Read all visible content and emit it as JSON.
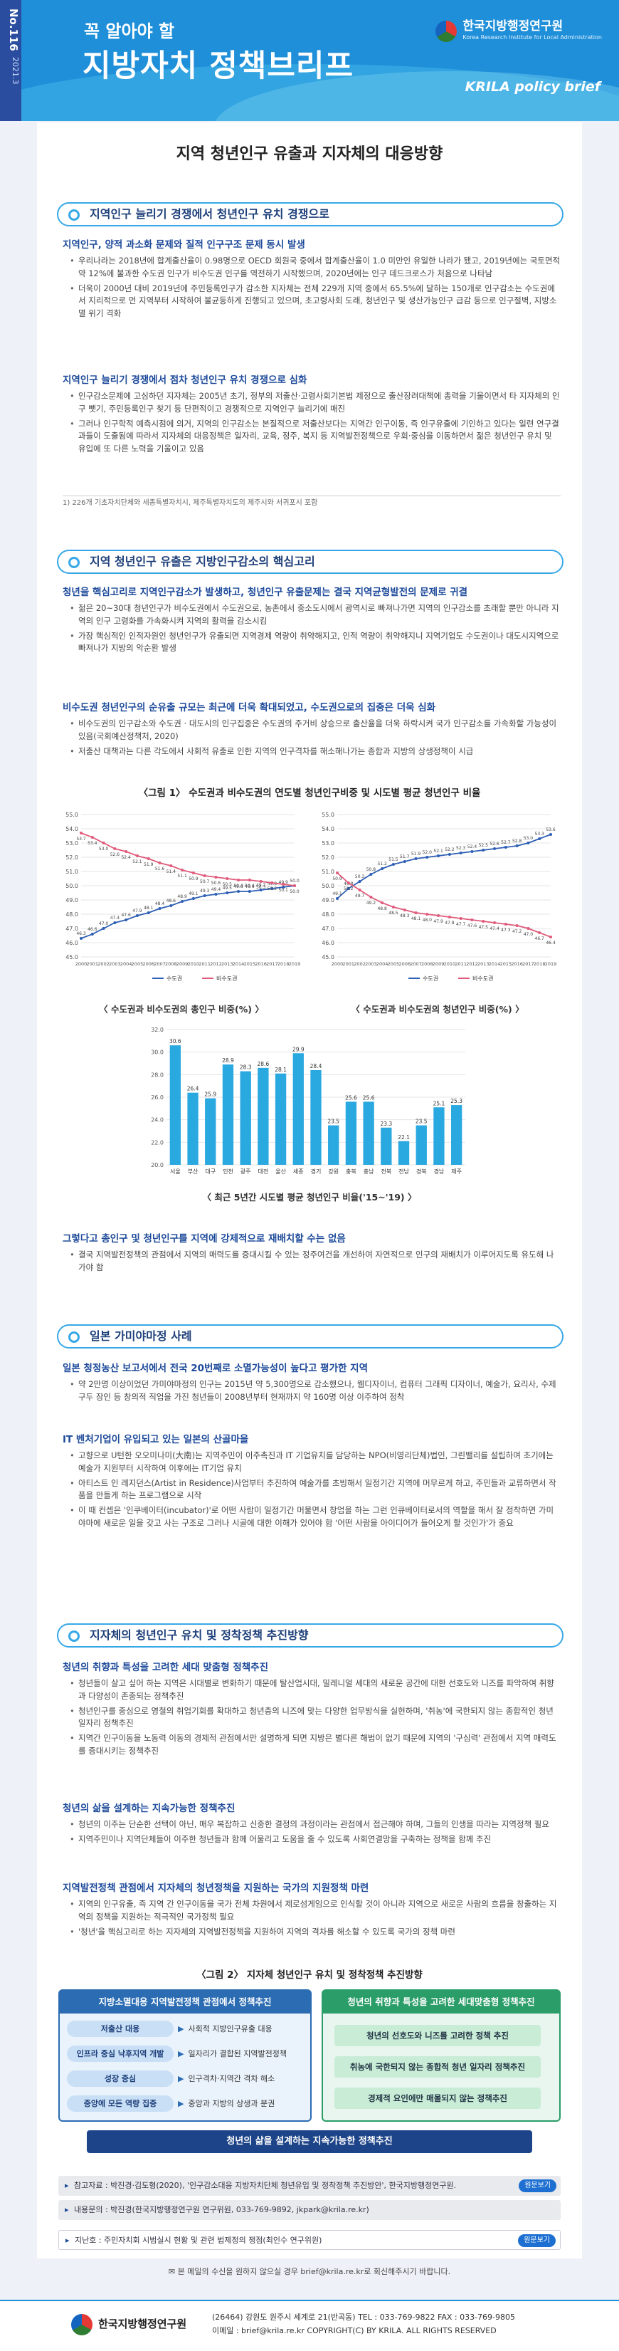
{
  "header": {
    "issue_no": "No.116",
    "issue_date": "2021.3",
    "subtitle": "꼭 알아야 할",
    "title": "지방자치 정책브리프",
    "org": "한국지방행정연구원",
    "org_en": "Korea Research Institute for Local Administration",
    "brief_tag": "KRILA policy brief"
  },
  "main_title": "지역 청년인구 유출과 지자체의 대응방향",
  "s1": {
    "head": "지역인구 늘리기 경쟁에서 청년인구 유치 경쟁으로",
    "sub1": "지역인구, 양적 과소화 문제와 질적 인구구조 문제 동시 발생",
    "b1": [
      "우리나라는 2018년에 합계출산율이 0.98명으로 OECD 회원국 중에서 합계출산율이 1.0 미만인 유일한 나라가 됐고, 2019년에는 국토면적 약 12%에 불과한 수도권 인구가 비수도권 인구를 역전하기 시작했으며, 2020년에는 인구 데드크로스가 처음으로 나타남",
      "더욱이 2000년 대비 2019년에 주민등록인구가 감소한 지자체는 전체 229개 지역 중에서 65.5%에 달하는 150개로 인구감소는 수도권에서 지리적으로 먼 지역부터 시작하여 불균등하게 진행되고 있으며, 초고령사회 도래, 청년인구 및 생산가능인구 급감 등으로 인구절벽, 지방소멸 위기 격화"
    ],
    "sub2": "지역인구 늘리기 경쟁에서 점차 청년인구 유치 경쟁으로 심화",
    "b2": [
      "인구감소문제에 고심하던 지자체는 2005년 초기, 정부의 저출산·고령사회기본법 제정으로 출산장려대책에 총력을 기울이면서 타 지자체의 인구 뺏기, 주민등록인구 찾기 등 단편적이고 경쟁적으로 지역인구 늘리기에 매진",
      "그러나 인구학적 예측시점에 의거, 지역의 인구감소는 본질적으로 저출산보다는 지역간 인구이동, 즉 인구유출에 기인하고 있다는 일련 연구결과들이 도출됨에 따라서 지자체의 대응정책은 일자리, 교육, 정주, 복지 등 지역발전정책으로 우회·중심을 이동하면서 젊은 청년인구 유치 및 유입에 또 다른 노력을 기울이고 있음"
    ],
    "footnote": "1) 226개 기초자치단체와 세종특별자치시, 제주특별자치도의 제주시와 서귀포시 포함"
  },
  "s2": {
    "head": "지역 청년인구 유출은 지방인구감소의 핵심고리",
    "sub1": "청년을 핵심고리로 지역인구감소가 발생하고, 청년인구 유출문제는 결국 지역균형발전의 문제로 귀결",
    "b1": [
      "젊은 20~30대 청년인구가 비수도권에서 수도권으로, 농촌에서 중소도시에서 광역시로 빠져나가면 지역의 인구감소를 초래할 뿐만 아니라 지역의 인구 고령화를 가속화시켜 지역의 활력을 감소시킴",
      "가장 핵심적인 인적자원인 청년인구가 유출되면 지역경제 역량이 취약해지고, 인적 역량이 취약해지니 지역기업도 수도권이나 대도시지역으로 빠져나가 지방의 악순환 발생"
    ],
    "sub2": "비수도권 청년인구의 순유출 규모는 최근에 더욱 확대되었고, 수도권으로의 집중은 더욱 심화",
    "b2": [
      "비수도권의 인구감소와 수도권 · 대도시의 인구집중은 수도권의 주거비 상승으로 출산율을 더욱 하락시켜 국가 인구감소를 가속화할 가능성이 있음(국회예산정책처, 2020)",
      "저출산 대책과는 다른 각도에서 사회적 유출로 인한 지역의 인구격차를 해소해나가는 종합과 지방의 상생정책이 시급"
    ],
    "fig1_title": "〈그림 1〉 수도권과 비수도권의 연도별 청년인구비중 및 시도별 평균 청년인구 비율",
    "cap_left": "〈 수도권과 비수도권의 총인구 비중(%) 〉",
    "cap_right": "〈 수도권과 비수도권의 청년인구 비중(%) 〉",
    "cap_bar": "〈 최근 5년간 시도별 평균 청년인구 비율('15~'19) 〉",
    "sub3": "그렇다고 총인구 및 청년인구를 지역에 강제적으로 재배치할 수는 없음",
    "b3": [
      "결국 지역발전정책의 관점에서 지역의 매력도를 증대시킬 수 있는 정주여건을 개선하여 자연적으로 인구의 재배치가 이루어지도록 유도해 나가야 함"
    ]
  },
  "s3": {
    "head": "일본 가미야마정 사례",
    "sub1": "일본 청정농산 보고서에서 전국 20번째로 소멸가능성이 높다고 평가한 지역",
    "b1": [
      "약 2만명 이상이었던 가미야마정의 인구는 2015년 약 5,300명으로 감소했으나, 웹디자이너, 컴퓨터 그래픽 디자이너, 예술가, 요리사, 수제구두 장인 등 창의적 직업을 가진 청년들이 2008년부터 현재까지 약 160명 이상 이주하여 정착"
    ],
    "sub2": "IT 벤처기업이 유입되고 있는 일본의 산골마을",
    "b2": [
      "고향으로 U턴한 오오미나미(大南)는 지역주민이 이주촉진과 IT 기업유치를 담당하는 NPO(비영리단체)법인, 그린밸리를 설립하여 초기에는 예술가 지원부터 시작하여 이후에는 IT기업 유치",
      "아티스트 인 레지던스(Artist in Residence)사업부터 추진하여 예술가를 초빙해서 일정기간 지역에 머무르게 하고, 주민들과 교류하면서 작품을 만들게 하는 프로그램으로 시작",
      "이 때 컨셉은 '인쿠베이터(incubator)'로 어떤 사람이 일정기간 머물면서 창업을 하는 그런 인큐베이터로서의 역할을 해서 잘 정착하면 가미야마에 새로운 일을 갖고 사는 구조로 그러나 시골에 대한 이해가 있어야 함"
    ],
    "b2extra": "'어떤 사람을 아이디어가 들어오게 할 것인가'가 중요"
  },
  "s4": {
    "head": "지자체의 청년인구 유치 및 정착정책 추진방향",
    "sub1": "청년의 취향과 특성을 고려한 세대 맞춤형 정책추진",
    "b1": [
      "청년들이 살고 싶어 하는 지역은 시대별로 변화하기 때문에 탈산업시대, 밀레니얼 세대의 새로운 공간에 대한 선호도와 니즈를 파악하여 취향과 다양성이 존중되는 정책추진",
      "청년인구를 중심으로 영철의 취업기회를 확대하고 청년층의 니즈에 맞는 다양한 업무방식을 실현하며, '취농'에 국한되지 않는 종합적인 청년일자리 정책추진",
      "지역간 인구이동을 노동력 이동의 경제적 관점에서만 설명하게 되면 지방은 별다른 해법이 없기 때문에 지역의 '구심력' 관점에서 지역 매력도를 증대시키는 정책추진"
    ],
    "sub2": "청년의 삶을 설계하는 지속가능한 정책추진",
    "b2": [
      "청년의 이주는 단순한 선택이 아닌, 매우 복잡하고 신중한 결정의 과정이라는 관점에서 접근해야 하며, 그들의 인생을 따라는 지역정책 필요",
      "지역주민이나 지역단체들이 이주한 청년들과 함께 어울리고 도움을 줄 수 있도록 사회연결망을 구축하는 정책을 함께 추진"
    ],
    "sub3": "지역발전정책 관점에서 지자체의 청년정책을 지원하는 국가의 지원정책 마련",
    "b3": [
      "지역의 인구유출, 즉 지역 간 인구이동을 국가 전체 차원에서 제로섬게임으로 인식할 것이 아니라 지역으로 새로운 사람의 흐름을 창출하는 지역의 정책을 지원하는 적극적인 국가정책 필요",
      "'청년'을 핵심고리로 하는 지자체의 지역발전정책을 지원하여 지역의 격차를 해소할 수 있도록 국가의 정책 마련"
    ],
    "fig2_title": "〈그림 2〉 지자체 청년인구 유치 및 정착정책 추진방향",
    "diagram": {
      "left_head": "지방소멸대응 지역발전정책 관점에서 정책추진",
      "left_rows": [
        {
          "pill": "저출산 대응",
          "target": "사회적 지방인구유출 대응"
        },
        {
          "pill": "인프라 중심 낙후지역 개발",
          "target": "일자리가 결합된 지역발전정책"
        },
        {
          "pill": "성장 중심",
          "target": "인구격차·지역간 격차 해소"
        },
        {
          "pill": "중앙에 모든 역량 집중",
          "target": "중앙과 지방의 상생과 분권"
        }
      ],
      "right_head": "청년의 취향과 특성을 고려한 세대맞춤형 정책추진",
      "right_rows": [
        "청년의 선호도와 니즈를 고려한 정책 추진",
        "취농에 국한되지 않는 종합적 청년 일자리 정책추진",
        "경제적 요인에만 매몰되지 않는 정책추진"
      ],
      "bottom": "청년의 삶을 설계하는 지속가능한 정책추진"
    }
  },
  "refs": [
    {
      "text": "참고자료 : 박진경·김도형(2020), '인구감소대응 지방자치단체 청년유입 및 정착정책 추진방안', 한국지방행정연구원.",
      "more": "원문보기"
    },
    {
      "text": "내용문의 : 박진경(한국지방행정연구원 연구위원, 033-769-9892, jkpark@krila.re.kr)",
      "more": ""
    },
    {
      "text": "지난호 : 주민자치회 시범실시 현황 및 관련 법제정의 쟁점(최인수 연구위원)",
      "more": "원문보기"
    }
  ],
  "notice": "본 메일의 수신을 원하지 않으실 경우 brief@krila.re.kr로 회신해주시기 바랍니다.",
  "footer": {
    "org": "한국지방행정연구원",
    "addr1": "(26464) 강원도 원주시 세계로 21(반곡동)    TEL : 033-769-9822    FAX : 033-769-9805",
    "addr2": "이메일 : brief@krila.re.kr    COPYRIGHT(C) BY KRILA. ALL RIGHTS RESERVED"
  },
  "chart_data": [
    {
      "type": "line",
      "title": "수도권과 비수도권의 총인구 비중(%)",
      "x": [
        2000,
        2001,
        2002,
        2003,
        2004,
        2005,
        2006,
        2007,
        2008,
        2009,
        2010,
        2011,
        2012,
        2013,
        2014,
        2015,
        2016,
        2017,
        2018,
        2019
      ],
      "ylim": [
        45,
        55
      ],
      "series": [
        {
          "name": "수도권",
          "values": [
            46.3,
            46.6,
            47.0,
            47.4,
            47.6,
            47.9,
            48.1,
            48.4,
            48.6,
            48.9,
            49.1,
            49.3,
            49.4,
            49.5,
            49.6,
            49.6,
            49.7,
            49.8,
            49.9,
            50.0
          ]
        },
        {
          "name": "비수도권",
          "values": [
            53.7,
            53.4,
            53.0,
            52.6,
            52.4,
            52.1,
            51.9,
            51.6,
            51.4,
            51.1,
            50.9,
            50.7,
            50.6,
            50.5,
            50.4,
            50.4,
            50.3,
            50.2,
            50.1,
            50.0
          ]
        }
      ]
    },
    {
      "type": "line",
      "title": "수도권과 비수도권의 청년인구 비중(%)",
      "x": [
        2000,
        2001,
        2002,
        2003,
        2004,
        2005,
        2006,
        2007,
        2008,
        2009,
        2010,
        2011,
        2012,
        2013,
        2014,
        2015,
        2016,
        2017,
        2018,
        2019
      ],
      "ylim": [
        45,
        55
      ],
      "series": [
        {
          "name": "수도권",
          "values": [
            49.1,
            49.8,
            50.3,
            50.8,
            51.2,
            51.5,
            51.7,
            51.9,
            52.0,
            52.1,
            52.2,
            52.3,
            52.4,
            52.5,
            52.6,
            52.7,
            52.8,
            53.0,
            53.3,
            53.6
          ]
        },
        {
          "name": "비수도권",
          "values": [
            50.9,
            50.2,
            49.7,
            49.2,
            48.8,
            48.5,
            48.3,
            48.1,
            48.0,
            47.9,
            47.8,
            47.7,
            47.6,
            47.5,
            47.4,
            47.3,
            47.2,
            47.0,
            46.7,
            46.4
          ]
        }
      ]
    },
    {
      "type": "bar",
      "title": "최근 5년간 시도별 평균 청년인구 비율('15~'19)",
      "categories": [
        "서울",
        "부산",
        "대구",
        "인천",
        "광주",
        "대전",
        "울산",
        "세종",
        "경기",
        "강원",
        "충북",
        "충남",
        "전북",
        "전남",
        "경북",
        "경남",
        "제주"
      ],
      "values": [
        30.6,
        26.4,
        25.9,
        28.9,
        28.3,
        28.6,
        28.1,
        29.9,
        28.4,
        23.5,
        25.6,
        25.6,
        23.3,
        22.1,
        23.5,
        25.1,
        25.3
      ],
      "ylim": [
        20,
        32
      ]
    }
  ]
}
